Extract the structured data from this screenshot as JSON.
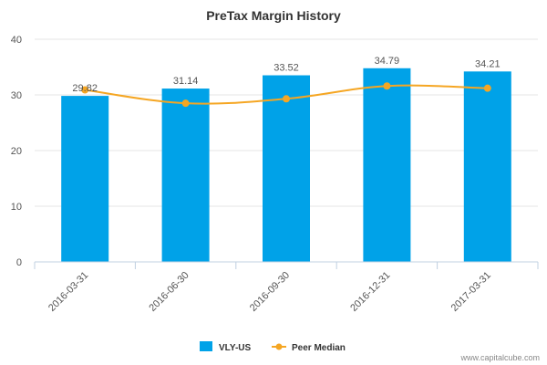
{
  "chart_data": {
    "type": "bar",
    "title": "PreTax Margin History",
    "categories": [
      "2016-03-31",
      "2016-06-30",
      "2016-09-30",
      "2016-12-31",
      "2017-03-31"
    ],
    "series": [
      {
        "name": "VLY-US",
        "type": "bar",
        "values": [
          29.82,
          31.14,
          33.52,
          34.79,
          34.21
        ],
        "color": "#00a2e8",
        "labels": [
          "29.82",
          "31.14",
          "33.52",
          "34.79",
          "34.21"
        ]
      },
      {
        "name": "Peer Median",
        "type": "line",
        "values": [
          30.9,
          28.5,
          29.3,
          31.6,
          31.2
        ],
        "color": "#f5a623"
      }
    ],
    "yticks": [
      "0",
      "10",
      "20",
      "30",
      "40"
    ],
    "ylim": [
      0,
      40
    ],
    "xlabel": "",
    "ylabel": "",
    "grid": true,
    "legend_position": "bottom-center"
  },
  "footer": {
    "source": "www.capitalcube.com"
  }
}
